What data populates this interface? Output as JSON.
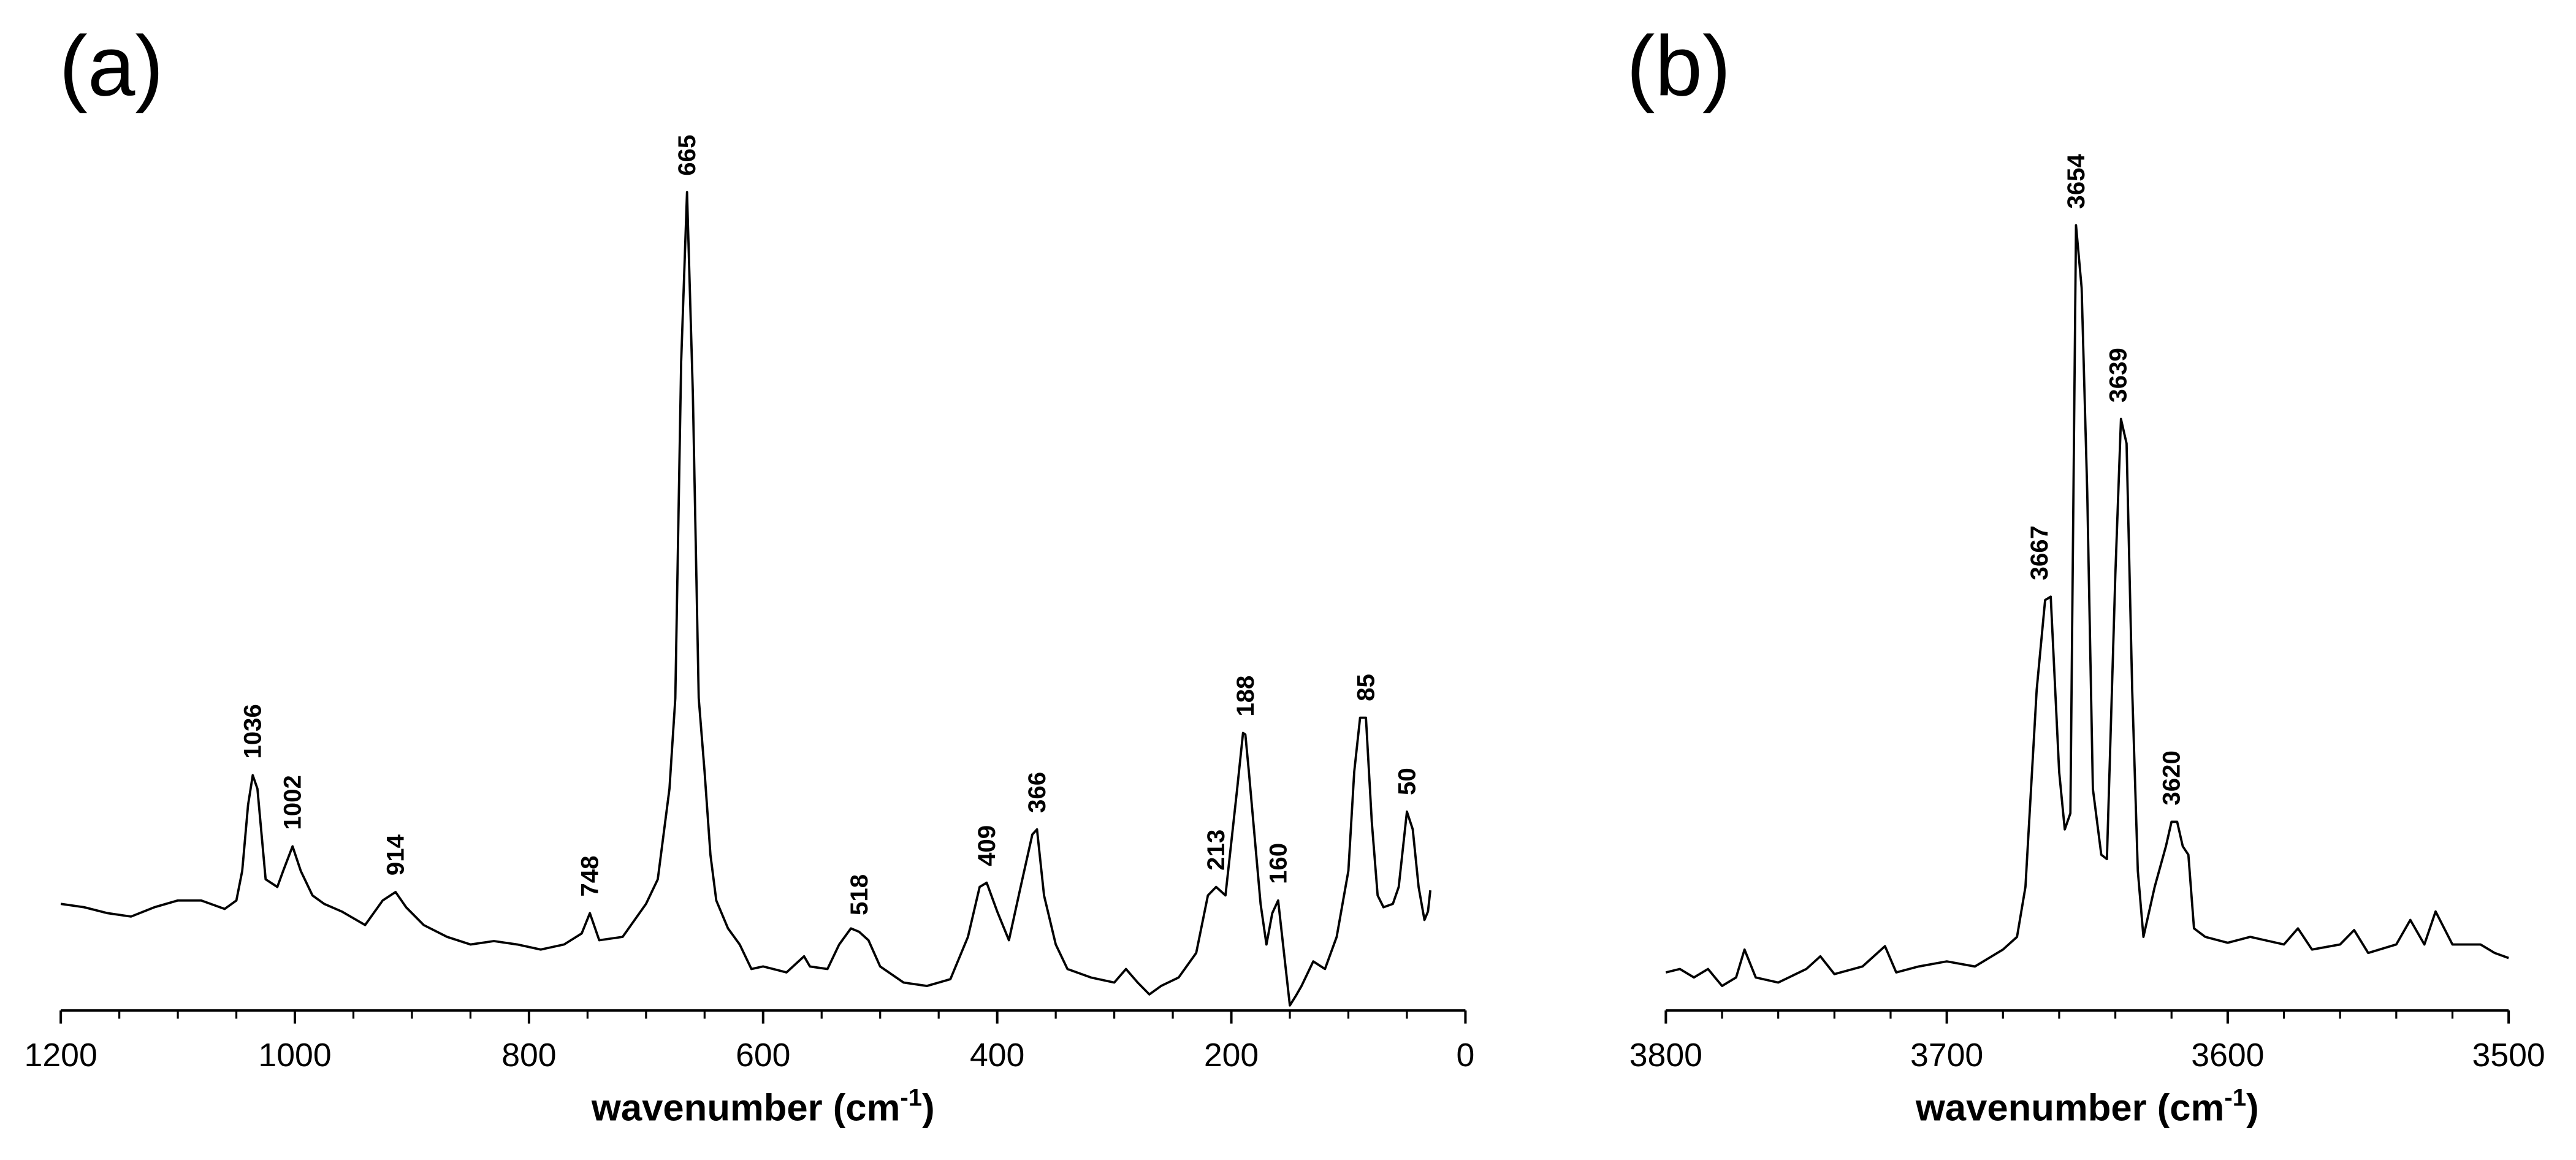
{
  "chart_data": [
    {
      "type": "line",
      "title": "(a)",
      "color": "#000000",
      "xlabel": {
        "text": "wavenumber (cm",
        "sup": "-1",
        "close": ")"
      },
      "xlim": [
        1200,
        0
      ],
      "xticks": [
        1200,
        1000,
        800,
        600,
        400,
        200,
        0
      ],
      "xminorticks": [
        1150,
        1100,
        1050,
        950,
        900,
        850,
        750,
        700,
        650,
        550,
        500,
        450,
        350,
        300,
        250,
        150,
        100,
        50
      ],
      "ylim": [
        0,
        100
      ],
      "x": [
        1200,
        1180,
        1160,
        1140,
        1120,
        1100,
        1080,
        1060,
        1050,
        1045,
        1040,
        1036,
        1032,
        1025,
        1015,
        1010,
        1002,
        995,
        985,
        975,
        960,
        940,
        925,
        914,
        905,
        890,
        870,
        850,
        830,
        810,
        790,
        770,
        755,
        748,
        740,
        720,
        700,
        690,
        680,
        675,
        670,
        665,
        660,
        655,
        650,
        645,
        640,
        630,
        620,
        610,
        600,
        580,
        565,
        560,
        545,
        535,
        525,
        518,
        510,
        500,
        480,
        460,
        440,
        425,
        415,
        409,
        400,
        390,
        380,
        370,
        366,
        360,
        350,
        340,
        320,
        300,
        290,
        280,
        270,
        260,
        245,
        230,
        220,
        213,
        205,
        195,
        190,
        188,
        185,
        175,
        170,
        165,
        160,
        155,
        150,
        145,
        140,
        130,
        120,
        110,
        100,
        95,
        90,
        85,
        80,
        75,
        70,
        62,
        57,
        50,
        45,
        40,
        35,
        32,
        30
      ],
      "values": [
        12.6,
        12.2,
        11.5,
        11.1,
        12.2,
        13.0,
        13.0,
        12.0,
        13.0,
        16.5,
        24.3,
        27.8,
        26.2,
        15.5,
        14.6,
        16.5,
        19.4,
        16.5,
        13.6,
        12.6,
        11.7,
        10.1,
        13.0,
        14.0,
        12.2,
        10.1,
        8.7,
        7.8,
        8.2,
        7.8,
        7.2,
        7.8,
        9.1,
        11.5,
        8.3,
        8.7,
        12.6,
        15.5,
        26.2,
        36.9,
        76.7,
        96.7,
        72.8,
        36.9,
        28.2,
        18.4,
        13.0,
        9.7,
        7.8,
        4.9,
        5.2,
        4.5,
        6.4,
        5.2,
        4.9,
        7.8,
        9.7,
        9.3,
        8.3,
        5.2,
        3.3,
        2.9,
        3.7,
        8.7,
        14.6,
        15.1,
        11.7,
        8.3,
        14.6,
        20.8,
        21.4,
        13.6,
        7.8,
        4.9,
        3.9,
        3.3,
        4.9,
        3.3,
        1.9,
        2.9,
        3.9,
        6.8,
        13.6,
        14.6,
        13.6,
        26.2,
        32.8,
        32.6,
        28.2,
        12.6,
        7.8,
        11.5,
        13.0,
        6.8,
        0.6,
        1.7,
        2.9,
        5.8,
        4.9,
        8.7,
        16.5,
        28.2,
        34.6,
        34.6,
        22.3,
        13.6,
        12.2,
        12.6,
        14.6,
        23.5,
        21.4,
        14.6,
        10.7,
        11.7,
        14.2
      ],
      "annotations": [
        {
          "x": 1036,
          "label": "1036"
        },
        {
          "x": 1002,
          "label": "1002"
        },
        {
          "x": 914,
          "label": "914"
        },
        {
          "x": 748,
          "label": "748"
        },
        {
          "x": 665,
          "label": "665"
        },
        {
          "x": 518,
          "label": "518"
        },
        {
          "x": 409,
          "label": "409"
        },
        {
          "x": 366,
          "label": "366"
        },
        {
          "x": 213,
          "label": "213"
        },
        {
          "x": 188,
          "label": "188"
        },
        {
          "x": 160,
          "label": "160"
        },
        {
          "x": 85,
          "label": "85"
        },
        {
          "x": 50,
          "label": "50"
        }
      ]
    },
    {
      "type": "line",
      "title": "(b)",
      "color": "#000000",
      "xlabel": {
        "text": "wavenumber (cm",
        "sup": "-1",
        "close": ")"
      },
      "xlim": [
        3800,
        3500
      ],
      "xticks": [
        3800,
        3700,
        3600,
        3500
      ],
      "xminorticks": [
        3780,
        3760,
        3740,
        3720,
        3680,
        3660,
        3640,
        3620,
        3580,
        3560,
        3540,
        3520
      ],
      "ylim": [
        0,
        100
      ],
      "x": [
        3800,
        3795,
        3790,
        3785,
        3780,
        3775,
        3772,
        3768,
        3760,
        3750,
        3745,
        3740,
        3730,
        3722,
        3718,
        3710,
        3700,
        3690,
        3680,
        3675,
        3672,
        3668,
        3665,
        3663,
        3660,
        3658,
        3656,
        3654,
        3652,
        3650,
        3648,
        3645,
        3643,
        3640,
        3638,
        3636,
        3634,
        3632,
        3630,
        3626,
        3622,
        3620,
        3618,
        3616,
        3614,
        3612,
        3608,
        3600,
        3592,
        3580,
        3575,
        3570,
        3560,
        3555,
        3550,
        3540,
        3535,
        3530,
        3526,
        3520,
        3510,
        3505,
        3500
      ],
      "values": [
        4.5,
        4.9,
        3.9,
        4.9,
        2.9,
        3.9,
        7.2,
        3.9,
        3.3,
        4.9,
        6.4,
        4.3,
        5.2,
        7.6,
        4.5,
        5.2,
        5.8,
        5.2,
        7.2,
        8.7,
        14.6,
        37.9,
        48.5,
        48.9,
        28.2,
        21.4,
        23.3,
        92.8,
        85.4,
        61.2,
        26.2,
        18.4,
        17.9,
        51.5,
        69.9,
        67.0,
        37.9,
        16.5,
        8.7,
        14.6,
        19.4,
        22.3,
        22.3,
        19.4,
        18.4,
        9.7,
        8.7,
        8.0,
        8.7,
        7.8,
        9.7,
        7.2,
        7.8,
        9.5,
        6.8,
        7.8,
        10.7,
        7.8,
        11.7,
        7.8,
        7.8,
        6.8,
        6.2
      ],
      "annotations": [
        {
          "x": 3667,
          "label": "3667"
        },
        {
          "x": 3654,
          "label": "3654"
        },
        {
          "x": 3639,
          "label": "3639"
        },
        {
          "x": 3620,
          "label": "3620"
        }
      ]
    }
  ]
}
